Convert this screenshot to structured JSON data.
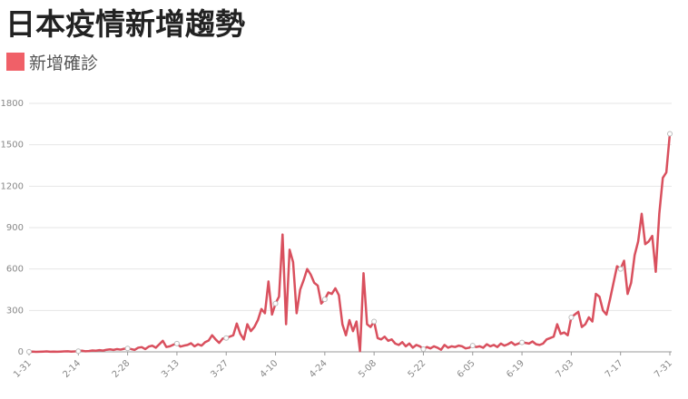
{
  "chart_data": {
    "type": "line",
    "title": "日本疫情新增趨勢",
    "categories": [
      "1-31",
      null,
      null,
      null,
      null,
      null,
      null,
      null,
      null,
      null,
      null,
      null,
      null,
      null,
      "2-14",
      null,
      null,
      null,
      null,
      null,
      null,
      null,
      null,
      null,
      null,
      null,
      null,
      null,
      "2-28",
      null,
      null,
      null,
      null,
      null,
      null,
      null,
      null,
      null,
      null,
      null,
      null,
      null,
      "3-13",
      null,
      null,
      null,
      null,
      null,
      null,
      null,
      null,
      null,
      null,
      null,
      null,
      null,
      "3-27",
      null,
      null,
      null,
      null,
      null,
      null,
      null,
      null,
      null,
      null,
      null,
      null,
      null,
      "4-10",
      null,
      null,
      null,
      null,
      null,
      null,
      null,
      null,
      null,
      null,
      null,
      null,
      null,
      "4-24",
      null,
      null,
      null,
      null,
      null,
      null,
      null,
      null,
      null,
      null,
      null,
      null,
      null,
      "5-08",
      null,
      null,
      null,
      null,
      null,
      null,
      null,
      null,
      null,
      null,
      null,
      null,
      null,
      "5-22",
      null,
      null,
      null,
      null,
      null,
      null,
      null,
      null,
      null,
      null,
      null,
      null,
      null,
      "6-05",
      null,
      null,
      null,
      null,
      null,
      null,
      null,
      null,
      null,
      null,
      null,
      null,
      null,
      "6-19",
      null,
      null,
      null,
      null,
      null,
      null,
      null,
      null,
      null,
      null,
      null,
      null,
      null,
      "7-03",
      null,
      null,
      null,
      null,
      null,
      null,
      null,
      null,
      null,
      null,
      null,
      null,
      null,
      "7-17",
      null,
      null,
      null,
      null,
      null,
      null,
      null,
      null,
      null,
      null,
      null,
      null,
      null,
      "7-31"
    ],
    "series": [
      {
        "name": "新增確診",
        "color": "#d9505e",
        "legend_color": "#f06068",
        "values": [
          1,
          2,
          0,
          1,
          2,
          3,
          1,
          2,
          1,
          2,
          3,
          4,
          2,
          3,
          5,
          8,
          4,
          6,
          10,
          8,
          12,
          9,
          15,
          18,
          14,
          20,
          16,
          22,
          25,
          20,
          14,
          30,
          34,
          20,
          38,
          45,
          30,
          55,
          80,
          35,
          40,
          52,
          60,
          38,
          45,
          50,
          62,
          40,
          55,
          45,
          70,
          82,
          120,
          90,
          65,
          96,
          100,
          110,
          120,
          205,
          130,
          90,
          200,
          150,
          180,
          230,
          310,
          280,
          510,
          270,
          350,
          400,
          850,
          200,
          740,
          650,
          280,
          450,
          520,
          600,
          560,
          500,
          480,
          350,
          380,
          430,
          420,
          460,
          410,
          200,
          120,
          230,
          150,
          220,
          5,
          570,
          200,
          180,
          220,
          100,
          90,
          110,
          80,
          90,
          60,
          50,
          70,
          40,
          60,
          30,
          50,
          40,
          20,
          35,
          25,
          40,
          30,
          15,
          50,
          30,
          40,
          35,
          45,
          40,
          25,
          30,
          45,
          35,
          40,
          30,
          55,
          40,
          50,
          35,
          60,
          45,
          55,
          70,
          50,
          60,
          68,
          65,
          60,
          75,
          55,
          50,
          60,
          90,
          100,
          110,
          200,
          130,
          140,
          120,
          250,
          270,
          290,
          180,
          200,
          250,
          220,
          420,
          400,
          300,
          270,
          380,
          500,
          620,
          600,
          660,
          420,
          500,
          700,
          800,
          1000,
          780,
          800,
          840,
          580,
          1000,
          1260,
          1300,
          1580
        ]
      }
    ],
    "ylim": [
      0,
      1800
    ],
    "yticks": [
      0,
      300,
      600,
      900,
      1200,
      1500,
      1800
    ],
    "grid": true
  }
}
